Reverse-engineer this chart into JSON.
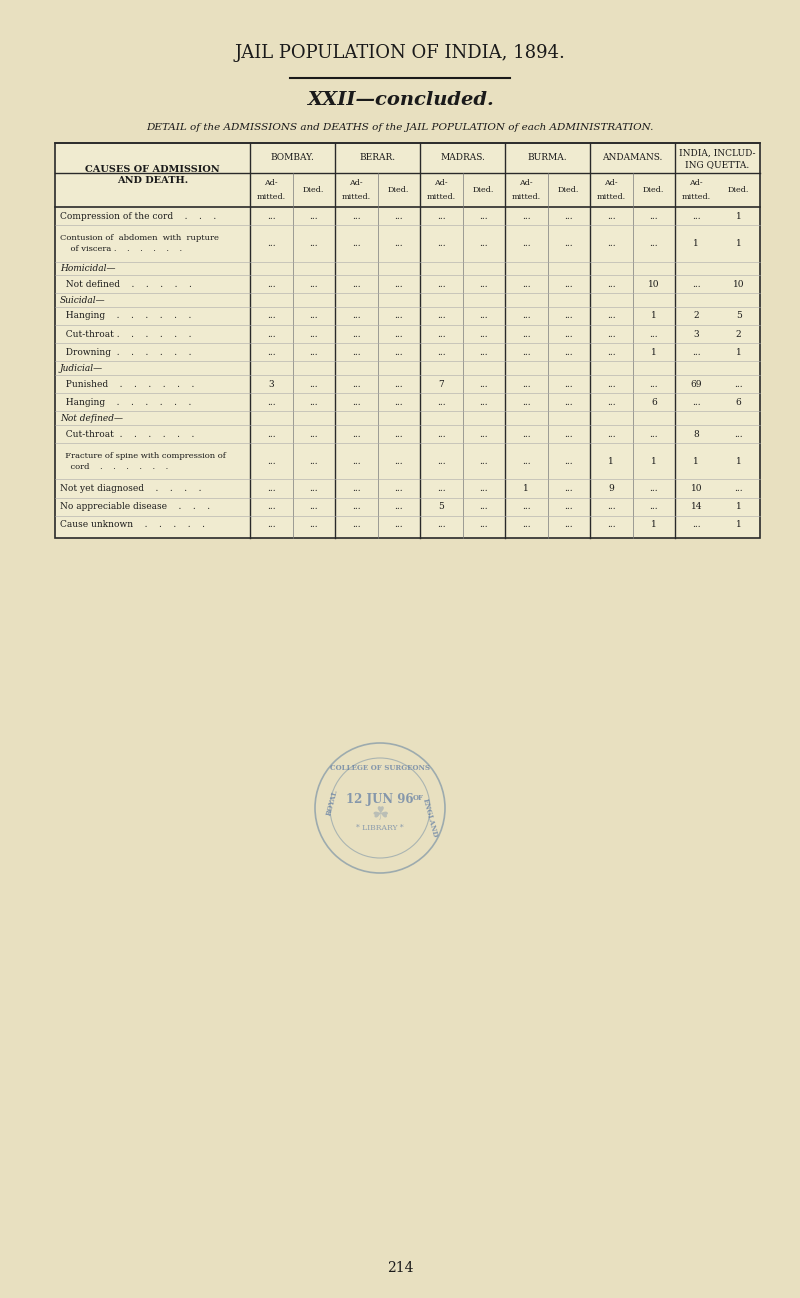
{
  "page_title": "JAIL POPULATION OF INDIA, 1894.",
  "section_title": "XXII—concluded.",
  "subtitle": "DETAIL of the ADMISSIONS and DEATHS of the JAIL POPULATION of each ADMINISTRATION.",
  "bg_color": "#e8e0c0",
  "table_bg": "#f0ebd0",
  "col_headers_level1": [
    "BOMBAY.",
    "BERAR.",
    "MADRAS.",
    "BURMA.",
    "ANDAMANS.",
    "INDIA, INCLUD-\nING QUETTA."
  ],
  "col_headers_level2": [
    "Ad-\nmitted.",
    "Died.",
    "Ad-\nmitted.",
    "Died.",
    "Ad-\nmitted.",
    "Died.",
    "Ad-\nmitted.",
    "Died.",
    "Ad-\nmitted.",
    "Died.",
    "Ad-\nmitted.",
    "Died."
  ],
  "row_label_header": "CAUSES OF ADMISSION\nAND DEATH.",
  "rows": [
    {
      "label": "Compression of the cord    .    .    .",
      "indent": 0,
      "values": [
        "...",
        "...",
        "...",
        "...",
        "...",
        "...",
        "...",
        "...",
        "...",
        "...",
        "...",
        "1"
      ]
    },
    {
      "label": "Contusion of  abdomen  with  rupture\n    of viscera .    .    .    .    .    .",
      "indent": 0,
      "values": [
        "...",
        "...",
        "...",
        "...",
        "...",
        "...",
        "...",
        "...",
        "...",
        "...",
        "1",
        "1"
      ]
    },
    {
      "label": "Homicidal—",
      "indent": 0,
      "values": null
    },
    {
      "label": "  Not defined    .    .    .    .    .",
      "indent": 1,
      "values": [
        "...",
        "...",
        "...",
        "...",
        "...",
        "...",
        "...",
        "...",
        "...",
        "10",
        "...",
        "10"
      ]
    },
    {
      "label": "Suicidal—",
      "indent": 0,
      "values": null
    },
    {
      "label": "  Hanging    .    .    .    .    .    .",
      "indent": 1,
      "values": [
        "...",
        "...",
        "...",
        "...",
        "...",
        "...",
        "...",
        "...",
        "...",
        "1",
        "2",
        "5"
      ]
    },
    {
      "label": "  Cut-throat .    .    .    .    .    .",
      "indent": 1,
      "values": [
        "...",
        "...",
        "...",
        "...",
        "...",
        "...",
        "...",
        "...",
        "...",
        "...",
        "3",
        "2"
      ]
    },
    {
      "label": "  Drowning  .    .    .    .    .    .",
      "indent": 1,
      "values": [
        "...",
        "...",
        "...",
        "...",
        "...",
        "...",
        "...",
        "...",
        "...",
        "1",
        "...",
        "1"
      ]
    },
    {
      "label": "Judicial—",
      "indent": 0,
      "values": null
    },
    {
      "label": "  Punished    .    .    .    .    .    .",
      "indent": 1,
      "values": [
        "3",
        "...",
        "...",
        "...",
        "7",
        "...",
        "...",
        "...",
        "...",
        "...",
        "69",
        "..."
      ]
    },
    {
      "label": "  Hanging    .    .    .    .    .    .",
      "indent": 1,
      "values": [
        "...",
        "...",
        "...",
        "...",
        "...",
        "...",
        "...",
        "...",
        "...",
        "6",
        "...",
        "6"
      ]
    },
    {
      "label": "Not defined—",
      "indent": 0,
      "values": null
    },
    {
      "label": "  Cut-throat  .    .    .    .    .    .",
      "indent": 1,
      "values": [
        "...",
        "...",
        "...",
        "...",
        "...",
        "...",
        "...",
        "...",
        "...",
        "...",
        "8",
        "..."
      ]
    },
    {
      "label": "  Fracture of spine with compression of\n    cord    .    .    .    .    .    .",
      "indent": 1,
      "values": [
        "...",
        "...",
        "...",
        "...",
        "...",
        "...",
        "...",
        "...",
        "1",
        "1",
        "1",
        "1"
      ]
    },
    {
      "label": "Not yet diagnosed    .    .    .    .",
      "indent": 0,
      "values": [
        "...",
        "...",
        "...",
        "...",
        "...",
        "...",
        "1",
        "...",
        "9",
        "...",
        "10",
        "..."
      ]
    },
    {
      "label": "No appreciable disease    .    .    .",
      "indent": 0,
      "values": [
        "...",
        "...",
        "...",
        "...",
        "5",
        "...",
        "...",
        "...",
        "...",
        "...",
        "14",
        "1"
      ]
    },
    {
      "label": "Cause unknown    .    .    .    .    .",
      "indent": 0,
      "values": [
        "...",
        "...",
        "...",
        "...",
        "...",
        "...",
        "...",
        "...",
        "...",
        "1",
        "...",
        "1"
      ]
    }
  ],
  "footer_page": "214"
}
